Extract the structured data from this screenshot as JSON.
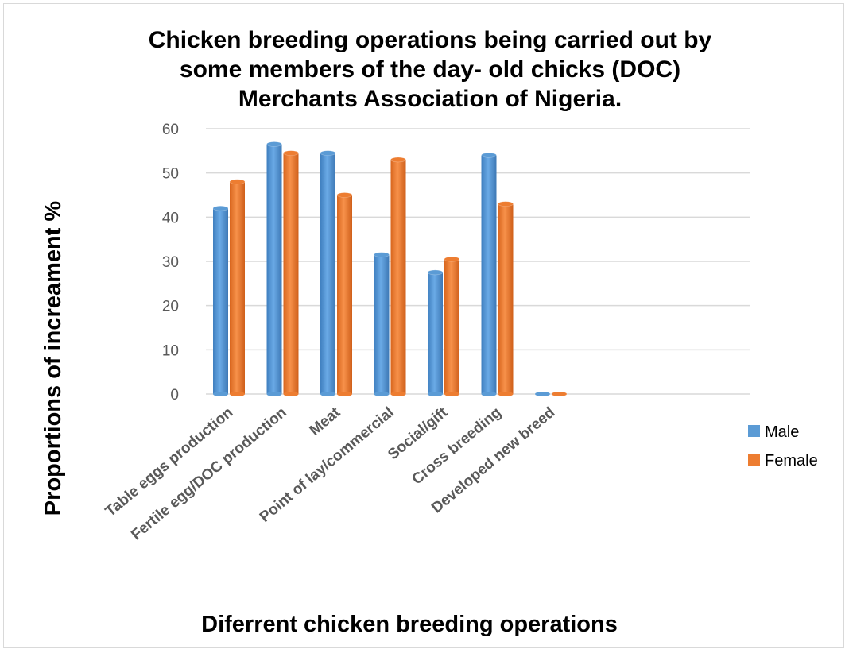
{
  "chart_data": {
    "type": "bar",
    "title": [
      "Chicken breeding operations being carried out by",
      "some members of the day- old chicks (DOC)",
      "Merchants Association of Nigeria."
    ],
    "xlabel": "Diferrent chicken breeding operations",
    "ylabel": "Proportions of increament %",
    "ylim": [
      0,
      60
    ],
    "yticks": [
      "0",
      "10",
      "20",
      "30",
      "40",
      "50",
      "60"
    ],
    "grid": true,
    "legend_position": "right",
    "categories": [
      "Table eggs production",
      "Fertile egg/DOC production",
      "Meat",
      "Point of lay/commercial",
      "Social/gift",
      "Cross breeding",
      "Developed new breed"
    ],
    "series": [
      {
        "name": "Male",
        "color": "#5b9bd5",
        "values": [
          42,
          56.5,
          54.5,
          31.5,
          27.5,
          54,
          0
        ]
      },
      {
        "name": "Female",
        "color": "#ed7d31",
        "values": [
          48,
          54.5,
          45,
          53,
          30.5,
          43,
          0
        ]
      }
    ]
  }
}
